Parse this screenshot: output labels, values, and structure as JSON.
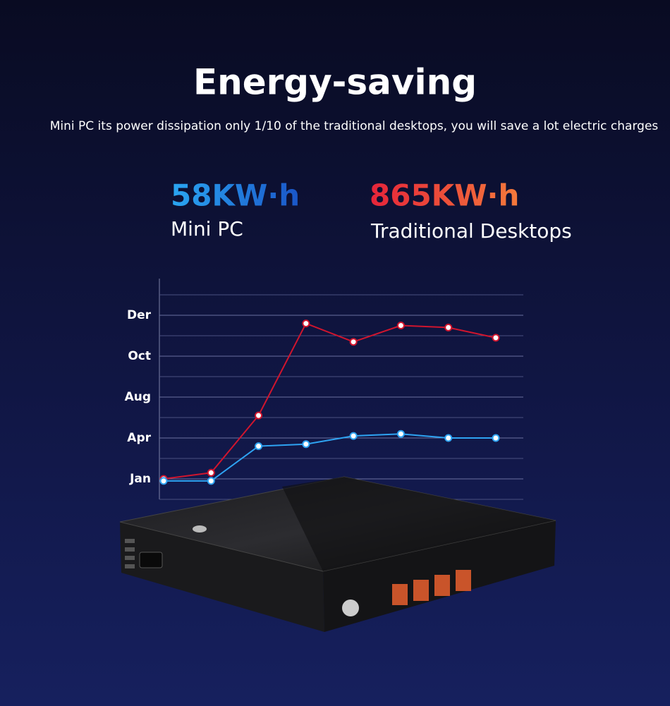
{
  "header": {
    "title": "Energy-saving",
    "subtitle": "Mini PC its power dissipation only 1/10 of the traditional desktops, you will save a lot electric charges"
  },
  "stats": [
    {
      "value": "58KW·h",
      "label": "Mini PC"
    },
    {
      "value": "865KW·h",
      "label": "Traditional Desktops"
    }
  ],
  "chart_data": {
    "type": "line",
    "categories": [
      null,
      null,
      null,
      null,
      null,
      null,
      null,
      null
    ],
    "series": [
      {
        "name": "Traditional Desktops",
        "color": "#d0152e",
        "values": [
          1.0,
          1.3,
          4.1,
          8.6,
          7.7,
          8.5,
          8.4,
          7.9
        ]
      },
      {
        "name": "Mini PC",
        "color": "#2ea3f2",
        "values": [
          0.9,
          0.9,
          2.6,
          2.7,
          3.1,
          3.2,
          3.0,
          3.0
        ]
      }
    ],
    "ylim": [
      0,
      10
    ],
    "yticks": [
      {
        "value": 1,
        "label": "Jan"
      },
      {
        "value": 3,
        "label": "Apr"
      },
      {
        "value": 5,
        "label": "Aug"
      },
      {
        "value": 7,
        "label": "Oct"
      },
      {
        "value": 9,
        "label": "Der"
      }
    ],
    "grid": true
  }
}
